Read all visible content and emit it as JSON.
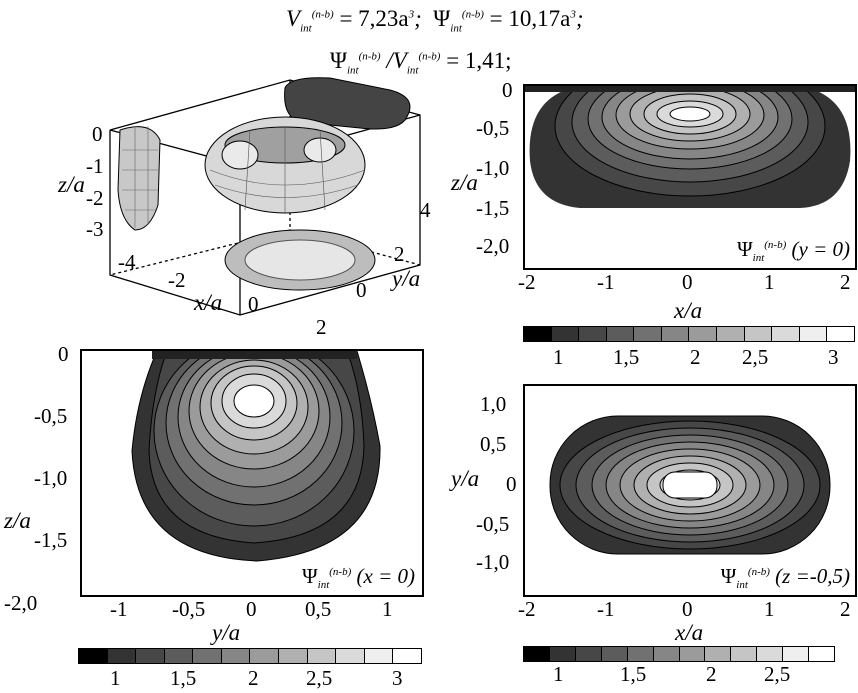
{
  "header": {
    "v_int": "= 7,23a",
    "psi_int": "= 10,17a",
    "ratio": "= 1,41;"
  },
  "sym": {
    "psi": "Ψ",
    "v": "V",
    "int": "int",
    "nb": "(n-b)"
  },
  "panel_3d": {
    "z_axis_label": "z/a",
    "y_axis_label": "y/a",
    "x_axis_label": "x/a",
    "z_ticks": [
      "0",
      "-1",
      "-2",
      "-3"
    ],
    "x_ticks": [
      "-4",
      "-2",
      "0",
      "2"
    ],
    "y_ticks": [
      "4",
      "2",
      "0"
    ]
  },
  "panel_y0": {
    "label_cond": "(y = 0)",
    "y_axis_label": "z/a",
    "x_axis_label": "x/a",
    "y_ticks": [
      "0",
      "-0,5",
      "-1,0",
      "-1,5",
      "-2,0"
    ],
    "x_ticks": [
      "-2",
      "-1",
      "0",
      "1",
      "2"
    ],
    "cbar_ticks": [
      "1",
      "1,5",
      "2",
      "2,5",
      "3"
    ]
  },
  "panel_x0": {
    "label_cond": "(x = 0)",
    "y_axis_label": "z/a",
    "x_axis_label": "y/a",
    "y_ticks": [
      "0",
      "-0,5",
      "-1,0",
      "-1,5",
      "-2,0"
    ],
    "x_ticks": [
      "-1",
      "-0,5",
      "0",
      "0,5",
      "1"
    ],
    "cbar_ticks": [
      "1",
      "1,5",
      "2",
      "2,5",
      "3"
    ]
  },
  "panel_z05": {
    "label_cond": "(z =-0,5)",
    "y_axis_label": "y/a",
    "x_axis_label": "x/a",
    "y_ticks": [
      "1,0",
      "0,5",
      "0",
      "-0,5",
      "-1,0"
    ],
    "x_ticks": [
      "-2",
      "-1",
      "0",
      "1",
      "2"
    ],
    "cbar_ticks": [
      "1",
      "1,5",
      "2",
      "2,5"
    ]
  },
  "colorbar_levels": [
    "#000000",
    "#333333",
    "#474747",
    "#5c5c5c",
    "#717171",
    "#868686",
    "#9b9b9b",
    "#b0b0b0",
    "#c5c5c5",
    "#dadada",
    "#efefef",
    "#ffffff"
  ]
}
